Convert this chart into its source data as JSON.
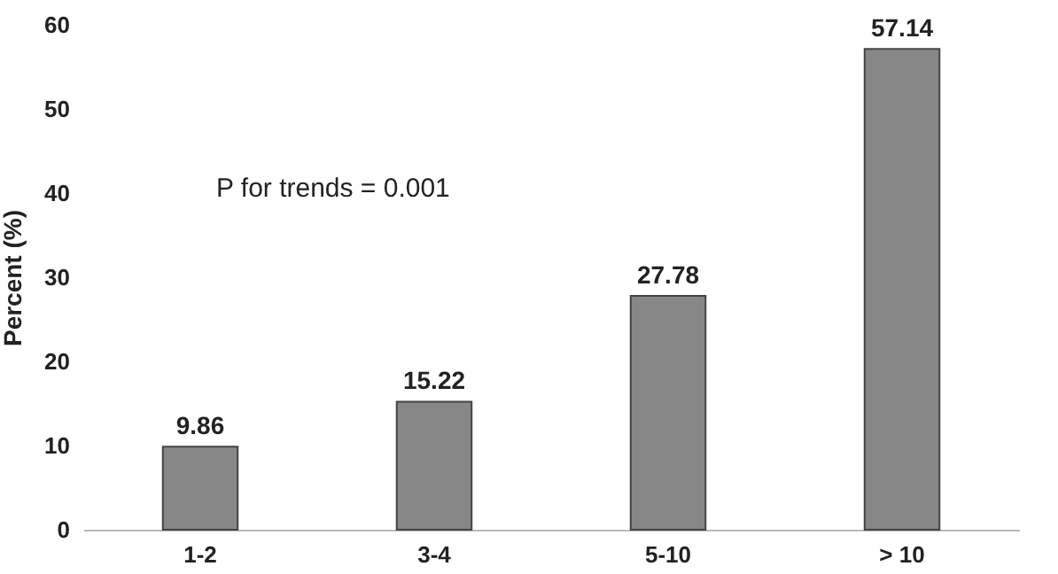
{
  "chart_data": {
    "type": "bar",
    "ylabel": "Percent (%)",
    "categories": [
      "1-2",
      "3-4",
      "5-10",
      "> 10"
    ],
    "values": [
      9.86,
      15.22,
      27.78,
      57.14
    ],
    "color": "#878787",
    "ylim": [
      0,
      60
    ],
    "yticks": [
      0,
      10,
      20,
      30,
      40,
      50,
      60
    ],
    "grid": false,
    "data_labels": true,
    "annotations": [
      "P for trends = 0.001"
    ]
  }
}
